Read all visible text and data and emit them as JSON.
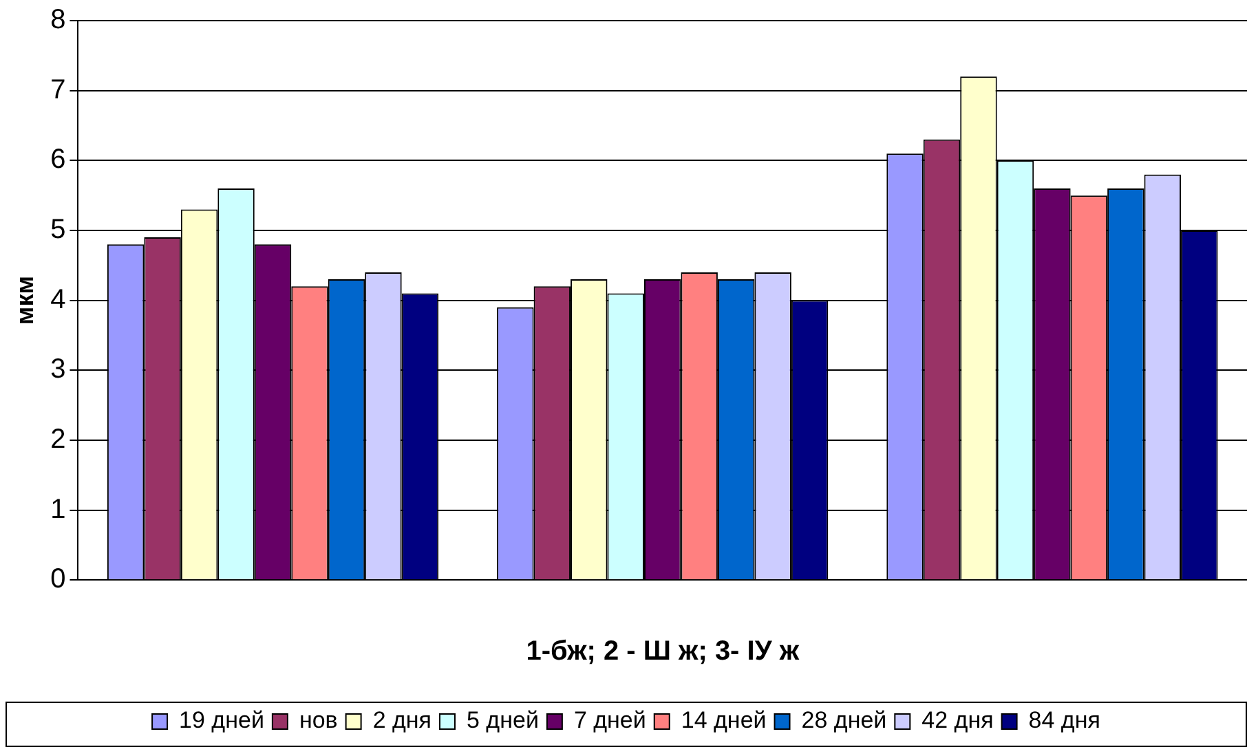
{
  "chart_data": {
    "type": "bar",
    "ylabel": "мкм",
    "xlabel": "1-бж; 2 - Ш ж; 3- IУ ж",
    "categories": [
      null,
      null,
      null
    ],
    "series": [
      {
        "name": "19 дней",
        "color": "#9999ff",
        "values": [
          4.8,
          3.9,
          6.1
        ]
      },
      {
        "name": "нов",
        "color": "#993366",
        "values": [
          4.9,
          4.2,
          6.3
        ]
      },
      {
        "name": "2 дня",
        "color": "#ffffcc",
        "values": [
          5.3,
          4.3,
          7.2
        ]
      },
      {
        "name": "5 дней",
        "color": "#ccffff",
        "values": [
          5.6,
          4.1,
          6.0
        ]
      },
      {
        "name": "7 дней",
        "color": "#660066",
        "values": [
          4.8,
          4.3,
          5.6
        ]
      },
      {
        "name": "14 дней",
        "color": "#ff8080",
        "values": [
          4.2,
          4.4,
          5.5
        ]
      },
      {
        "name": "28 дней",
        "color": "#0066cc",
        "values": [
          4.3,
          4.3,
          5.6
        ]
      },
      {
        "name": "42 дня",
        "color": "#ccccff",
        "values": [
          4.4,
          4.4,
          5.8
        ]
      },
      {
        "name": "84 дня",
        "color": "#000080",
        "values": [
          4.1,
          4.0,
          5.0
        ]
      }
    ],
    "ylim": [
      0,
      8
    ],
    "yticks": [
      0,
      1,
      2,
      3,
      4,
      5,
      6,
      7,
      8
    ],
    "grid": "y",
    "legend": "bottom"
  }
}
